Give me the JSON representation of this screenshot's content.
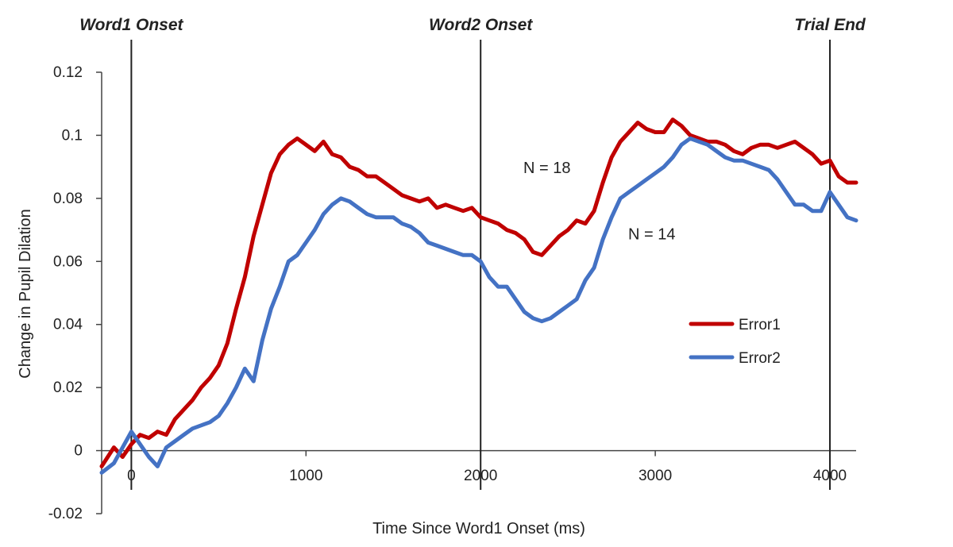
{
  "chart_data": {
    "type": "line",
    "title": "",
    "xlabel": "Time Since Word1 Onset (ms)",
    "ylabel": "Change in Pupil Dilation",
    "xlim": [
      -170,
      4150
    ],
    "ylim": [
      -0.02,
      0.12
    ],
    "x_ticks": [
      0,
      1000,
      2000,
      3000,
      4000
    ],
    "y_ticks": [
      -0.02,
      0,
      0.02,
      0.04,
      0.06,
      0.08,
      0.1,
      0.12
    ],
    "x_tick_labels": [
      "0",
      "1000",
      "2000",
      "3000",
      "4000"
    ],
    "y_tick_labels": [
      "-0.02",
      "0",
      "0.02",
      "0.04",
      "0.06",
      "0.08",
      "0.1",
      "0.12"
    ],
    "grid": false,
    "legend_position": "lower-right",
    "event_markers": [
      {
        "label": "Word1 Onset",
        "x": 0
      },
      {
        "label": "Word2 Onset",
        "x": 2000
      },
      {
        "label": "Trial End",
        "x": 4000
      }
    ],
    "annotations": [
      {
        "text": "N = 18",
        "x": 2380,
        "y": 0.088
      },
      {
        "text": "N = 14",
        "x": 2980,
        "y": 0.067
      }
    ],
    "series": [
      {
        "name": "Error1",
        "color": "#c00000",
        "x": [
          -170,
          -100,
          -50,
          0,
          50,
          100,
          150,
          200,
          250,
          300,
          350,
          400,
          450,
          500,
          550,
          600,
          650,
          700,
          750,
          800,
          850,
          900,
          950,
          1000,
          1050,
          1100,
          1150,
          1200,
          1250,
          1300,
          1350,
          1400,
          1450,
          1500,
          1550,
          1600,
          1650,
          1700,
          1750,
          1800,
          1850,
          1900,
          1950,
          2000,
          2050,
          2100,
          2150,
          2200,
          2250,
          2300,
          2350,
          2400,
          2450,
          2500,
          2550,
          2600,
          2650,
          2700,
          2750,
          2800,
          2850,
          2900,
          2950,
          3000,
          3050,
          3100,
          3150,
          3200,
          3250,
          3300,
          3350,
          3400,
          3450,
          3500,
          3550,
          3600,
          3650,
          3700,
          3750,
          3800,
          3850,
          3900,
          3950,
          4000,
          4050,
          4100,
          4150
        ],
        "values": [
          -0.005,
          0.001,
          -0.002,
          0.002,
          0.005,
          0.004,
          0.006,
          0.005,
          0.01,
          0.013,
          0.016,
          0.02,
          0.023,
          0.027,
          0.034,
          0.045,
          0.055,
          0.068,
          0.078,
          0.088,
          0.094,
          0.097,
          0.099,
          0.097,
          0.095,
          0.098,
          0.094,
          0.093,
          0.09,
          0.089,
          0.087,
          0.087,
          0.085,
          0.083,
          0.081,
          0.08,
          0.079,
          0.08,
          0.077,
          0.078,
          0.077,
          0.076,
          0.077,
          0.074,
          0.073,
          0.072,
          0.07,
          0.069,
          0.067,
          0.063,
          0.062,
          0.065,
          0.068,
          0.07,
          0.073,
          0.072,
          0.076,
          0.085,
          0.093,
          0.098,
          0.101,
          0.104,
          0.102,
          0.101,
          0.101,
          0.105,
          0.103,
          0.1,
          0.099,
          0.098,
          0.098,
          0.097,
          0.095,
          0.094,
          0.096,
          0.097,
          0.097,
          0.096,
          0.097,
          0.098,
          0.096,
          0.094,
          0.091,
          0.092,
          0.087,
          0.085,
          0.085
        ]
      },
      {
        "name": "Error2",
        "color": "#4472c4",
        "x": [
          -170,
          -100,
          -50,
          0,
          50,
          100,
          150,
          200,
          250,
          300,
          350,
          400,
          450,
          500,
          550,
          600,
          650,
          700,
          750,
          800,
          850,
          900,
          950,
          1000,
          1050,
          1100,
          1150,
          1200,
          1250,
          1300,
          1350,
          1400,
          1450,
          1500,
          1550,
          1600,
          1650,
          1700,
          1750,
          1800,
          1850,
          1900,
          1950,
          2000,
          2050,
          2100,
          2150,
          2200,
          2250,
          2300,
          2350,
          2400,
          2450,
          2500,
          2550,
          2600,
          2650,
          2700,
          2750,
          2800,
          2850,
          2900,
          2950,
          3000,
          3050,
          3100,
          3150,
          3200,
          3250,
          3300,
          3350,
          3400,
          3450,
          3500,
          3550,
          3600,
          3650,
          3700,
          3750,
          3800,
          3850,
          3900,
          3950,
          4000,
          4050,
          4100,
          4150
        ],
        "values": [
          -0.007,
          -0.004,
          0.001,
          0.006,
          0.002,
          -0.002,
          -0.005,
          0.001,
          0.003,
          0.005,
          0.007,
          0.008,
          0.009,
          0.011,
          0.015,
          0.02,
          0.026,
          0.022,
          0.035,
          0.045,
          0.052,
          0.06,
          0.062,
          0.066,
          0.07,
          0.075,
          0.078,
          0.08,
          0.079,
          0.077,
          0.075,
          0.074,
          0.074,
          0.074,
          0.072,
          0.071,
          0.069,
          0.066,
          0.065,
          0.064,
          0.063,
          0.062,
          0.062,
          0.06,
          0.055,
          0.052,
          0.052,
          0.048,
          0.044,
          0.042,
          0.041,
          0.042,
          0.044,
          0.046,
          0.048,
          0.054,
          0.058,
          0.067,
          0.074,
          0.08,
          0.082,
          0.084,
          0.086,
          0.088,
          0.09,
          0.093,
          0.097,
          0.099,
          0.098,
          0.097,
          0.095,
          0.093,
          0.092,
          0.092,
          0.091,
          0.09,
          0.089,
          0.086,
          0.082,
          0.078,
          0.078,
          0.076,
          0.076,
          0.082,
          0.078,
          0.074,
          0.073
        ]
      }
    ]
  }
}
